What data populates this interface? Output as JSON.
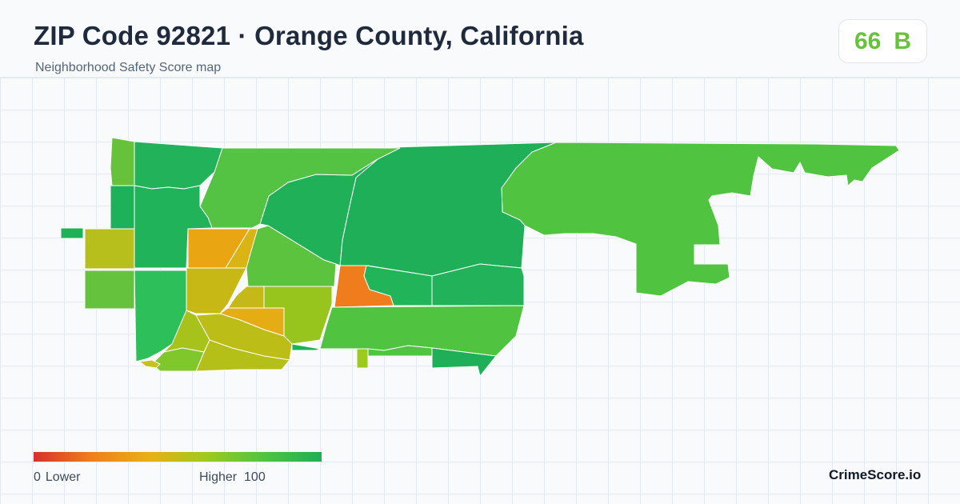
{
  "header": {
    "title": "ZIP Code 92821 · Orange County, California",
    "subtitle": "Neighborhood Safety Score map"
  },
  "score": {
    "value": "66",
    "grade": "B",
    "color": "#66c23a"
  },
  "legend": {
    "min_value": "0",
    "min_label": "Lower",
    "max_label": "Higher",
    "max_value": "100",
    "gradient": [
      "#d7302c",
      "#f07f1a",
      "#e8b015",
      "#9fca1d",
      "#4fc440",
      "#1fae57"
    ]
  },
  "brand": "CrimeScore.io",
  "map": {
    "border_color": "#ffffff",
    "regions": [
      {
        "id": "region-01",
        "color": "#66c23a"
      },
      {
        "id": "region-02",
        "color": "#22b35a"
      },
      {
        "id": "region-03",
        "color": "#54c242"
      },
      {
        "id": "region-04",
        "color": "#1eaf58"
      },
      {
        "id": "region-05",
        "color": "#1fb058"
      },
      {
        "id": "region-06",
        "color": "#1db159"
      },
      {
        "id": "region-07",
        "color": "#21b35a"
      },
      {
        "id": "region-08",
        "color": "#b7bf1c"
      },
      {
        "id": "region-09",
        "color": "#64c23c"
      },
      {
        "id": "region-10",
        "color": "#2dbf5a"
      },
      {
        "id": "region-11",
        "color": "#eaa512"
      },
      {
        "id": "region-12",
        "color": "#d9b414"
      },
      {
        "id": "region-13",
        "color": "#c8b816"
      },
      {
        "id": "region-14",
        "color": "#5cc33f"
      },
      {
        "id": "region-15",
        "color": "#f07d1d"
      },
      {
        "id": "region-16",
        "color": "#1fb158"
      },
      {
        "id": "region-17",
        "color": "#22b458"
      },
      {
        "id": "region-18",
        "color": "#bcbd16"
      },
      {
        "id": "region-19",
        "color": "#e5ac13"
      },
      {
        "id": "region-20",
        "color": "#97c51d"
      },
      {
        "id": "region-21",
        "color": "#50c441"
      },
      {
        "id": "region-22",
        "color": "#22b25a"
      },
      {
        "id": "region-23",
        "color": "#a7c21b"
      },
      {
        "id": "region-24",
        "color": "#c4b918"
      },
      {
        "id": "region-25",
        "color": "#b4bf18"
      },
      {
        "id": "region-26",
        "color": "#7fc72b"
      },
      {
        "id": "region-27",
        "color": "#c5c21d"
      },
      {
        "id": "region-28",
        "color": "#1eaf58"
      },
      {
        "id": "region-29",
        "color": "#1fb158"
      },
      {
        "id": "region-30",
        "color": "#9cca1f"
      }
    ]
  }
}
